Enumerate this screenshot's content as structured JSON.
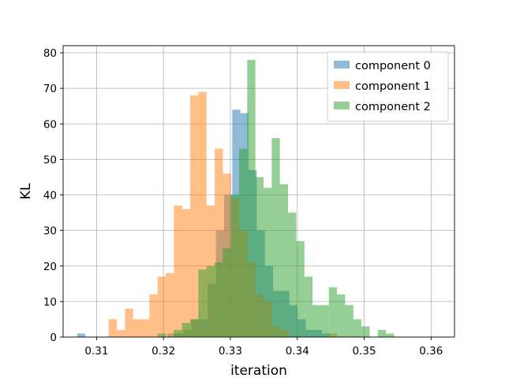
{
  "chart_data": {
    "type": "histogram",
    "title": "",
    "xlabel": "iteration",
    "ylabel": "KL",
    "xlim": [
      0.305,
      0.3635
    ],
    "ylim": [
      0,
      82
    ],
    "xticks": [
      0.31,
      0.32,
      0.33,
      0.34,
      0.35,
      0.36
    ],
    "xtick_labels": [
      "0.31",
      "0.32",
      "0.33",
      "0.34",
      "0.35",
      "0.36"
    ],
    "yticks": [
      0,
      10,
      20,
      30,
      40,
      50,
      60,
      70,
      80
    ],
    "ytick_labels": [
      "0",
      "10",
      "20",
      "30",
      "40",
      "50",
      "60",
      "70",
      "80"
    ],
    "grid": true,
    "legend_position": "top-right",
    "bar_alpha": 0.5,
    "series": [
      {
        "name": "component 0",
        "color": "#1f77b4",
        "bin_start": 0.3071,
        "bin_width": 0.00122,
        "values": [
          1,
          0,
          0,
          0,
          0,
          0,
          0,
          0,
          0,
          0,
          0,
          1,
          1,
          2,
          5,
          5,
          15,
          30,
          40,
          64,
          63,
          47,
          30,
          20,
          13,
          13,
          9,
          5,
          2,
          2,
          1
        ]
      },
      {
        "name": "component 1",
        "color": "#ff7f0e",
        "bin_start": 0.3118,
        "bin_width": 0.00122,
        "values": [
          5,
          2,
          8,
          5,
          5,
          12,
          17,
          18,
          37,
          36,
          68,
          69,
          37,
          53,
          46,
          39,
          30,
          21,
          12,
          10,
          3,
          2,
          0,
          0,
          0,
          0,
          0,
          1
        ]
      },
      {
        "name": "component 2",
        "color": "#2ca02c",
        "bin_start": 0.3191,
        "bin_width": 0.00122,
        "values": [
          1,
          0,
          2,
          4,
          5,
          19,
          20,
          21,
          25,
          40,
          53,
          78,
          45,
          42,
          56,
          43,
          35,
          27,
          17,
          9,
          9,
          14,
          12,
          9,
          5,
          3,
          0,
          2,
          1
        ]
      }
    ]
  }
}
